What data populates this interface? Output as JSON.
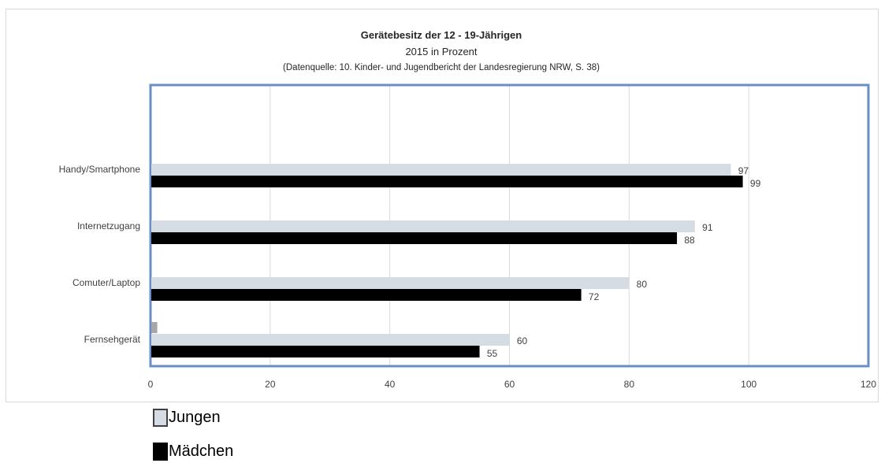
{
  "chart_data": {
    "type": "bar",
    "orientation": "horizontal",
    "title": "Gerätebesitz der 12 - 19-Jährigen",
    "subtitle": "2015 in Prozent",
    "source_note": "(Datenquelle: 10. Kinder- und Jugendbericht der Landesregierung NRW, S. 38)",
    "categories": [
      "Handy/Smartphone",
      "Internetzugang",
      "Comuter/Laptop",
      "Fernsehgerät"
    ],
    "series": [
      {
        "name": "Jungen",
        "color": "#d6dce4",
        "values": [
          97,
          91,
          80,
          60
        ]
      },
      {
        "name": "Mädchen",
        "color": "#000000",
        "values": [
          99,
          88,
          72,
          55
        ]
      }
    ],
    "extra_mark": {
      "category": "Fernsehgerät",
      "value": 1,
      "color": "#a6a6a6"
    },
    "xlim": [
      0,
      120
    ],
    "xticks": [
      0,
      20,
      40,
      60,
      80,
      100,
      120
    ],
    "grid": "vertical",
    "legend_position": "bottom-left"
  },
  "legend": {
    "jungen_label": "Jungen",
    "maedchen_label": "Mädchen"
  }
}
